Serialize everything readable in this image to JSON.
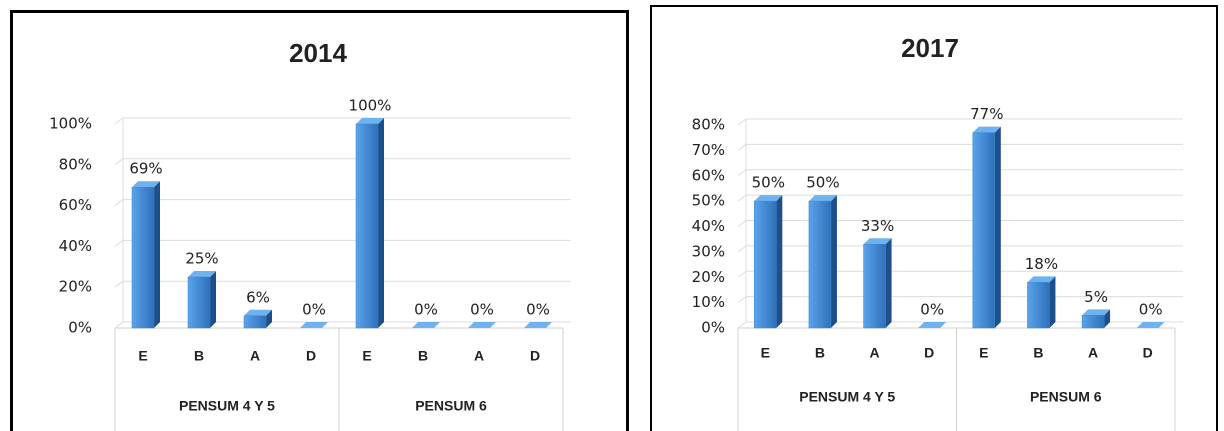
{
  "chart_data": [
    {
      "type": "bar",
      "title": "2014",
      "categories": [
        "E",
        "B",
        "A",
        "D",
        "E",
        "B",
        "A",
        "D"
      ],
      "groups": [
        "PENSUM 4 Y 5",
        "PENSUM 6"
      ],
      "values": [
        69,
        25,
        6,
        0,
        100,
        0,
        0,
        0
      ],
      "value_labels": [
        "69%",
        "25%",
        "6%",
        "0%",
        "100%",
        "0%",
        "0%",
        "0%"
      ],
      "color": "#3a86d4",
      "ylim": [
        0,
        100
      ],
      "yticks": [
        {
          "value": 0,
          "label": "0%"
        },
        {
          "value": 20,
          "label": "20%"
        },
        {
          "value": 40,
          "label": "40%"
        },
        {
          "value": 60,
          "label": "60%"
        },
        {
          "value": 80,
          "label": "80%"
        },
        {
          "value": 100,
          "label": "100%"
        }
      ],
      "grid": true
    },
    {
      "type": "bar",
      "title": "2017",
      "categories": [
        "E",
        "B",
        "A",
        "D",
        "E",
        "B",
        "A",
        "D"
      ],
      "groups": [
        "PENSUM 4 Y 5",
        "PENSUM 6"
      ],
      "values": [
        50,
        50,
        33,
        0,
        77,
        18,
        5,
        0
      ],
      "value_labels": [
        "50%",
        "50%",
        "33%",
        "0%",
        "77%",
        "18%",
        "5%",
        "0%"
      ],
      "color": "#3a86d4",
      "ylim": [
        0,
        80
      ],
      "yticks": [
        {
          "value": 0,
          "label": "0%"
        },
        {
          "value": 10,
          "label": "10%"
        },
        {
          "value": 20,
          "label": "20%"
        },
        {
          "value": 30,
          "label": "30%"
        },
        {
          "value": 40,
          "label": "40%"
        },
        {
          "value": 50,
          "label": "50%"
        },
        {
          "value": 60,
          "label": "60%"
        },
        {
          "value": 70,
          "label": "70%"
        },
        {
          "value": 80,
          "label": "80%"
        }
      ],
      "grid": true
    }
  ]
}
